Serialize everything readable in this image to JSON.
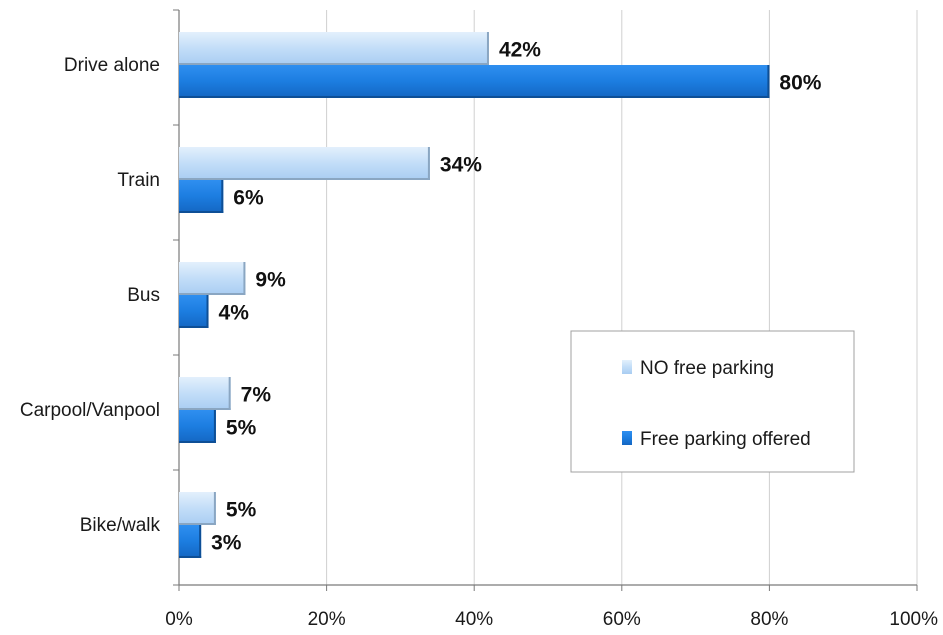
{
  "chart_data": {
    "type": "bar",
    "orientation": "horizontal",
    "categories": [
      "Drive alone",
      "Train",
      "Bus",
      "Carpool/Vanpool",
      "Bike/walk"
    ],
    "series": [
      {
        "name": "NO free parking",
        "values": [
          42,
          34,
          9,
          7,
          5
        ],
        "color": "#b9d9f7"
      },
      {
        "name": "Free parking offered",
        "values": [
          80,
          6,
          4,
          5,
          3
        ],
        "color": "#1c7de0"
      }
    ],
    "data_labels": [
      [
        "42%",
        "34%",
        "9%",
        "7%",
        "5%"
      ],
      [
        "80%",
        "6%",
        "4%",
        "5%",
        "3%"
      ]
    ],
    "x_ticks": [
      "0%",
      "20%",
      "40%",
      "60%",
      "80%",
      "100%"
    ],
    "xlim": [
      0,
      100
    ],
    "grid": true,
    "legend_position": "right"
  }
}
